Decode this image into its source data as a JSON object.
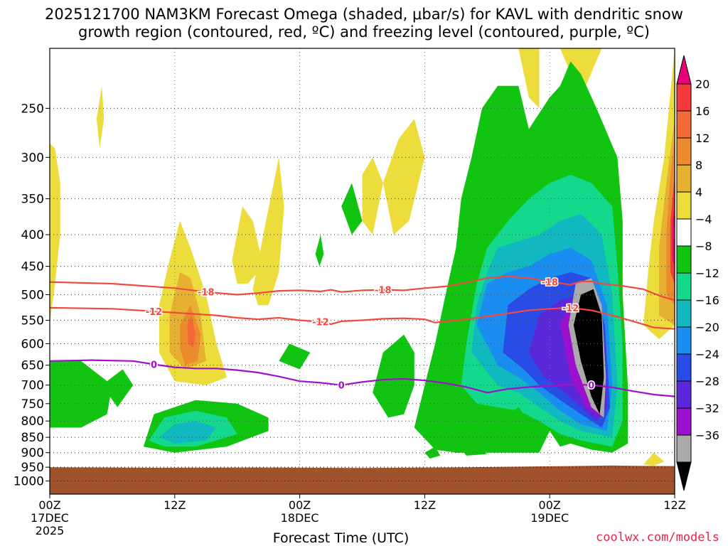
{
  "title_line1": "2025121700 NAM3KM Forecast Omega (shaded, μbar/s) for KAVL with dendritic snow",
  "title_line2": "growth region (contoured, red, ºC) and freezing level (contoured, purple, ºC)",
  "credit": "coolwx.com/models",
  "chart_data": {
    "type": "heatmap",
    "xlabel": "Forecast Time (UTC)",
    "x_ticks": [
      {
        "label": "00Z",
        "sub": "17DEC",
        "sub2": "2025",
        "hours": 0
      },
      {
        "label": "12Z",
        "sub": "",
        "sub2": "",
        "hours": 12
      },
      {
        "label": "00Z",
        "sub": "18DEC",
        "sub2": "",
        "hours": 24
      },
      {
        "label": "12Z",
        "sub": "",
        "sub2": "",
        "hours": 36
      },
      {
        "label": "00Z",
        "sub": "19DEC",
        "sub2": "",
        "hours": 48
      },
      {
        "label": "12Z",
        "sub": "",
        "sub2": "",
        "hours": 60
      }
    ],
    "xlim_hours": [
      0,
      60
    ],
    "ylabel": "",
    "y_axis": "pressure (mb), log scale, inverted",
    "y_ticks": [
      250,
      300,
      350,
      400,
      450,
      500,
      550,
      600,
      650,
      700,
      750,
      800,
      850,
      900,
      950,
      1000
    ],
    "ylim": [
      1050,
      200
    ],
    "surface_pressure_approx": 950,
    "colorbar": {
      "labels": [
        "20",
        "16",
        "12",
        "8",
        "4",
        "−4",
        "−8",
        "−12",
        "−16",
        "−20",
        "−24",
        "−28",
        "−32",
        "−36"
      ],
      "colors": [
        "#e8007a",
        "#f23a3a",
        "#f46a36",
        "#ec8a2e",
        "#e6b033",
        "#ecdc3c",
        "#ffffff",
        "#12c412",
        "#14d88c",
        "#12b8c0",
        "#1a8ef0",
        "#2a4ce6",
        "#5a28d8",
        "#9a10cc",
        "#aaaaaa",
        "#000000"
      ]
    },
    "contours": [
      {
        "name": "-18",
        "color": "#f04a40",
        "label": "-18",
        "points": [
          [
            0,
            477
          ],
          [
            6,
            480
          ],
          [
            12,
            488
          ],
          [
            15,
            495
          ],
          [
            18,
            500
          ],
          [
            20,
            497
          ],
          [
            22,
            493
          ],
          [
            24,
            492
          ],
          [
            26,
            494
          ],
          [
            27,
            491
          ],
          [
            28,
            495
          ],
          [
            30,
            492
          ],
          [
            32,
            491
          ],
          [
            34,
            492
          ],
          [
            36,
            488
          ],
          [
            38,
            485
          ],
          [
            40,
            478
          ],
          [
            42,
            470
          ],
          [
            44,
            467
          ],
          [
            46,
            470
          ],
          [
            48,
            477
          ],
          [
            49,
            479
          ],
          [
            50,
            482
          ],
          [
            51,
            476
          ],
          [
            52,
            476
          ],
          [
            53,
            480
          ],
          [
            55,
            484
          ],
          [
            57,
            490
          ],
          [
            58,
            498
          ],
          [
            59,
            505
          ],
          [
            60,
            510
          ]
        ]
      },
      {
        "name": "-12",
        "color": "#f04a40",
        "label": "-12",
        "points": [
          [
            0,
            525
          ],
          [
            6,
            527
          ],
          [
            10,
            532
          ],
          [
            13,
            536
          ],
          [
            16,
            540
          ],
          [
            18,
            545
          ],
          [
            20,
            548
          ],
          [
            22,
            545
          ],
          [
            24,
            550
          ],
          [
            26,
            553
          ],
          [
            27,
            558
          ],
          [
            28,
            552
          ],
          [
            30,
            550
          ],
          [
            32,
            547
          ],
          [
            34,
            546
          ],
          [
            36,
            548
          ],
          [
            37,
            555
          ],
          [
            38,
            552
          ],
          [
            40,
            548
          ],
          [
            42,
            542
          ],
          [
            44,
            536
          ],
          [
            46,
            530
          ],
          [
            48,
            527
          ],
          [
            50,
            525
          ],
          [
            52,
            530
          ],
          [
            54,
            540
          ],
          [
            56,
            552
          ],
          [
            58,
            565
          ],
          [
            60,
            568
          ]
        ]
      },
      {
        "name": "0",
        "color": "#a010c8",
        "label": "0",
        "points": [
          [
            0,
            640
          ],
          [
            4,
            638
          ],
          [
            8,
            640
          ],
          [
            10,
            648
          ],
          [
            12,
            655
          ],
          [
            14,
            658
          ],
          [
            16,
            658
          ],
          [
            18,
            662
          ],
          [
            20,
            668
          ],
          [
            22,
            678
          ],
          [
            24,
            690
          ],
          [
            26,
            694
          ],
          [
            28,
            700
          ],
          [
            30,
            692
          ],
          [
            32,
            686
          ],
          [
            34,
            684
          ],
          [
            36,
            688
          ],
          [
            38,
            695
          ],
          [
            40,
            705
          ],
          [
            42,
            720
          ],
          [
            44,
            710
          ],
          [
            46,
            705
          ],
          [
            48,
            702
          ],
          [
            50,
            698
          ],
          [
            52,
            700
          ],
          [
            54,
            706
          ],
          [
            56,
            716
          ],
          [
            58,
            725
          ],
          [
            60,
            730
          ]
        ]
      }
    ],
    "omega_features": [
      {
        "type": "ascent",
        "max_magnitude": "<-36",
        "center_hours": 53,
        "center_mb": 620
      },
      {
        "type": "descent",
        "max_magnitude": ">20",
        "center_hours": 59,
        "center_mb": 420
      },
      {
        "type": "descent",
        "max_magnitude": "12-16",
        "center_hours": 13.5,
        "center_mb": 580
      }
    ]
  }
}
